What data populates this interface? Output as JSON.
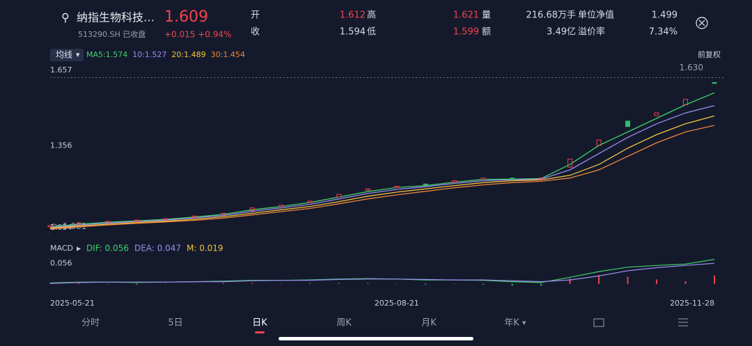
{
  "header": {
    "name": "纳指生物科技…",
    "price": "1.609",
    "code": "513290.SH 已收盘",
    "change": "+0.015 +0.94%"
  },
  "quote": {
    "rows": [
      [
        {
          "label": "开",
          "value": "1.612"
        },
        {
          "label": "高",
          "value": "1.621"
        },
        {
          "label": "量",
          "value": "216.68万手"
        },
        {
          "label": "单位净值",
          "value": "1.499"
        }
      ],
      [
        {
          "label": "收",
          "value": "1.594"
        },
        {
          "label": "低",
          "value": "1.599"
        },
        {
          "label": "额",
          "value": "3.49亿"
        },
        {
          "label": "溢价率",
          "value": "7.34%"
        }
      ]
    ]
  },
  "toolbar": {
    "ma_button": "均线",
    "adjust": "前复权"
  },
  "chart_data": [
    {
      "type": "candlestick",
      "categories": [
        "2025-05-21",
        null,
        null,
        null,
        null,
        null,
        null,
        null,
        null,
        null,
        null,
        null,
        "2025-08-21",
        null,
        null,
        null,
        null,
        null,
        null,
        null,
        null,
        null,
        null,
        "2025-11-28"
      ],
      "open": [
        1.08,
        1.088,
        1.098,
        1.1,
        1.108,
        1.115,
        1.125,
        1.14,
        1.155,
        1.17,
        1.19,
        1.215,
        1.225,
        1.238,
        1.245,
        1.255,
        1.26,
        1.255,
        1.3,
        1.38,
        1.47,
        1.49,
        1.53,
        1.612
      ],
      "close": [
        1.085,
        1.095,
        1.1,
        1.105,
        1.11,
        1.12,
        1.13,
        1.15,
        1.16,
        1.175,
        1.2,
        1.22,
        1.23,
        1.235,
        1.25,
        1.26,
        1.255,
        1.26,
        1.33,
        1.4,
        1.45,
        1.5,
        1.55,
        1.609
      ],
      "up_color": "#ee4452",
      "down_color": "#2fbf6a",
      "series": [
        {
          "name": "MA5:1.574",
          "color": "#3fd26b",
          "values": [
            1.08,
            1.09,
            1.097,
            1.102,
            1.108,
            1.116,
            1.126,
            1.143,
            1.155,
            1.17,
            1.19,
            1.21,
            1.225,
            1.232,
            1.245,
            1.255,
            1.256,
            1.258,
            1.31,
            1.38,
            1.43,
            1.48,
            1.53,
            1.574
          ]
        },
        {
          "name": "10:1.527",
          "color": "#9d8cf2",
          "values": [
            1.078,
            1.087,
            1.094,
            1.1,
            1.105,
            1.113,
            1.122,
            1.137,
            1.15,
            1.163,
            1.183,
            1.203,
            1.218,
            1.228,
            1.24,
            1.25,
            1.254,
            1.256,
            1.29,
            1.35,
            1.41,
            1.46,
            1.5,
            1.527
          ]
        },
        {
          "name": "20:1.489",
          "color": "#f2c440",
          "values": [
            1.075,
            1.083,
            1.09,
            1.096,
            1.101,
            1.108,
            1.117,
            1.13,
            1.143,
            1.155,
            1.173,
            1.193,
            1.208,
            1.22,
            1.232,
            1.243,
            1.25,
            1.253,
            1.27,
            1.31,
            1.37,
            1.42,
            1.46,
            1.489
          ]
        },
        {
          "name": "30:1.454",
          "color": "#f0843a",
          "values": [
            1.072,
            1.08,
            1.087,
            1.093,
            1.098,
            1.104,
            1.112,
            1.124,
            1.136,
            1.148,
            1.165,
            1.183,
            1.198,
            1.211,
            1.224,
            1.235,
            1.243,
            1.248,
            1.26,
            1.29,
            1.34,
            1.39,
            1.43,
            1.454
          ]
        }
      ],
      "ylim": [
        1.054,
        1.657
      ],
      "yticks": [
        1.657,
        1.356,
        1.054
      ],
      "annotations": [
        {
          "value": 1.63,
          "label": "1.630"
        },
        {
          "value": 1.081,
          "label": "1.081"
        }
      ]
    },
    {
      "type": "macd",
      "title": "MACD",
      "series": [
        {
          "name": "DIF: 0.056",
          "color": "#3fd26b",
          "values": [
            0.002,
            0.004,
            0.004,
            0.003,
            0.004,
            0.005,
            0.006,
            0.008,
            0.008,
            0.009,
            0.011,
            0.012,
            0.011,
            0.009,
            0.009,
            0.008,
            0.005,
            0.003,
            0.015,
            0.028,
            0.038,
            0.042,
            0.045,
            0.056
          ]
        },
        {
          "name": "DEA: 0.047",
          "color": "#9d8cf2",
          "values": [
            0.001,
            0.003,
            0.004,
            0.004,
            0.004,
            0.005,
            0.005,
            0.007,
            0.008,
            0.008,
            0.01,
            0.011,
            0.011,
            0.01,
            0.009,
            0.009,
            0.007,
            0.005,
            0.009,
            0.018,
            0.03,
            0.037,
            0.042,
            0.047
          ]
        }
      ],
      "bars": {
        "name": "M: 0.019",
        "color": "#f2c440",
        "values": [
          0.002,
          0.002,
          0,
          -0.002,
          0,
          0,
          0.002,
          0.002,
          0,
          0.002,
          0.002,
          0.002,
          0,
          -0.002,
          0,
          -0.002,
          -0.004,
          -0.004,
          0.012,
          0.02,
          0.016,
          0.01,
          0.006,
          0.019
        ]
      },
      "up_color": "#ee4452",
      "down_color": "#2fbf6a",
      "ylim": [
        -0.01,
        0.06
      ],
      "yticks": [
        0.056
      ]
    }
  ],
  "tabs": [
    "分时",
    "5日",
    "日K",
    "周K",
    "月K",
    "年K"
  ]
}
